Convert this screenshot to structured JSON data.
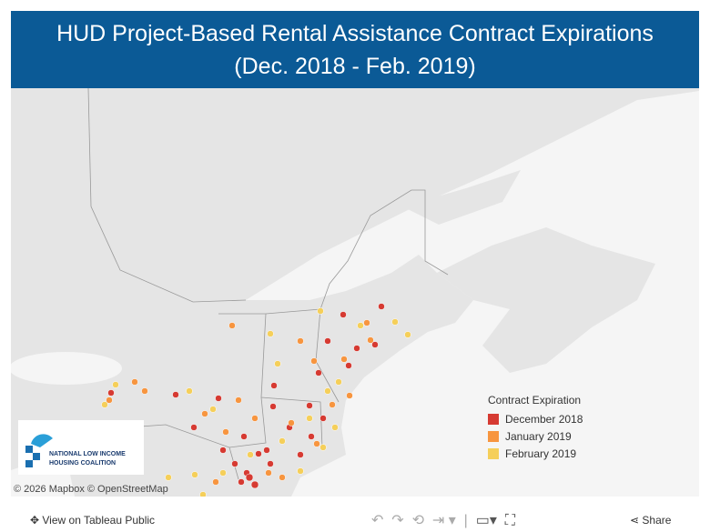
{
  "header": {
    "title_line1": "HUD Project-Based Rental Assistance Contract Expirations",
    "title_line2": "(Dec. 2018 - Feb. 2019)"
  },
  "legend": {
    "title": "Contract Expiration",
    "items": [
      "December 2018",
      "January 2019",
      "February 2019"
    ]
  },
  "logo": {
    "line1": "NATIONAL LOW INCOME",
    "line2": "HOUSING COALITION"
  },
  "attribution": "© 2026 Mapbox © OpenStreetMap",
  "toolbar": {
    "view": "View on Tableau Public",
    "share": "Share"
  }
}
